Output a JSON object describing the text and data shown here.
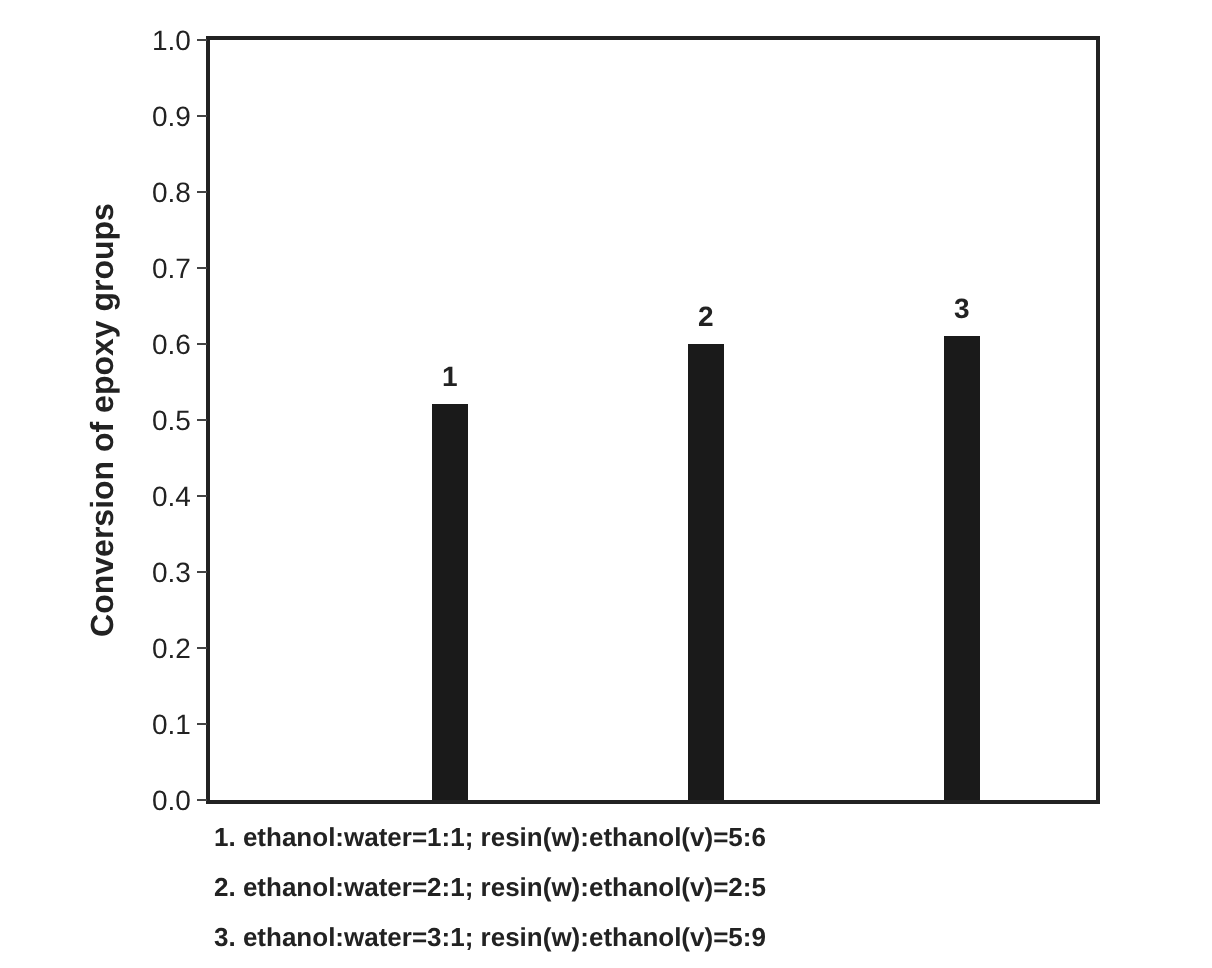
{
  "chart_data": {
    "type": "bar",
    "ylabel": "Conversion of epoxy groups",
    "categories": [
      null,
      null,
      null
    ],
    "values": [
      0.52,
      0.6,
      0.61
    ],
    "color": "#1a1a1a",
    "ylim": [
      0.0,
      1.0
    ],
    "yticks": [
      {
        "value": 0,
        "label": "0.0"
      },
      0.1,
      0.2,
      0.3,
      0.4,
      0.5,
      0.6,
      0.7,
      0.8,
      0.9,
      {
        "value": 1,
        "label": "1.0"
      }
    ],
    "annotations": [
      {
        "text": "1",
        "y": 0.52
      },
      {
        "text": "2",
        "y": 0.6
      },
      {
        "text": "3",
        "y": 0.61
      },
      "1. ethanol:water=1:1; resin(w):ethanol(v)=5:6",
      "2. ethanol:water=2:1; resin(w):ethanol(v)=2:5",
      "3. ethanol:water=3:1; resin(w):ethanol(v)=5:9"
    ]
  }
}
